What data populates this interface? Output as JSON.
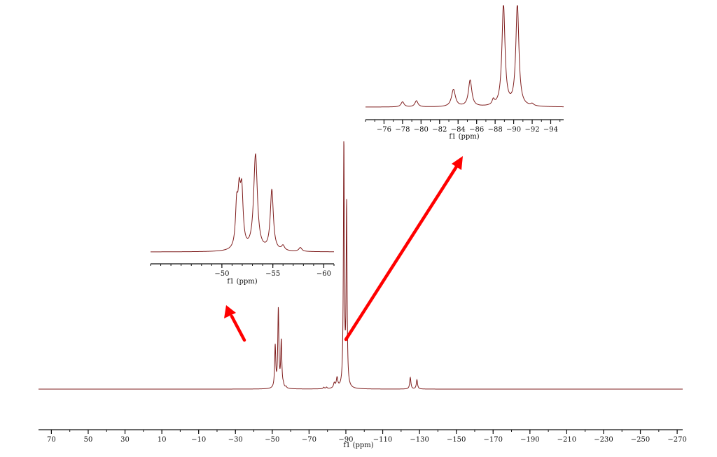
{
  "colors": {
    "spectrum": "#7f1d1d",
    "axis": "#111111",
    "arrow": "#ff0000"
  },
  "chart_data": [
    {
      "type": "line",
      "name_role": "main-spectrum",
      "xlabel": "f1 (ppm)",
      "xlim": [
        77,
        -273
      ],
      "reversed_x": true,
      "tick_values": [
        70,
        50,
        30,
        10,
        -10,
        -30,
        -50,
        -70,
        -90,
        -110,
        -130,
        -150,
        -170,
        -190,
        -210,
        -230,
        -250,
        -270
      ],
      "tick_labels": [
        "70",
        "50",
        "30",
        "10",
        "−10",
        "−30",
        "−50",
        "−70",
        "−90",
        "−110",
        "−130",
        "−150",
        "−170",
        "−190",
        "−210",
        "−230",
        "−250",
        "−270"
      ],
      "peaks": [
        {
          "x": -51.6,
          "height": 0.17,
          "width": 0.35
        },
        {
          "x": -53.3,
          "height": 0.32,
          "width": 0.35
        },
        {
          "x": -54.9,
          "height": 0.19,
          "width": 0.35
        },
        {
          "x": -56.0,
          "height": 0.01,
          "width": 0.4
        },
        {
          "x": -57.5,
          "height": 0.006,
          "width": 0.4
        },
        {
          "x": -78.0,
          "height": 0.006,
          "width": 0.4
        },
        {
          "x": -79.5,
          "height": 0.006,
          "width": 0.4
        },
        {
          "x": -83.7,
          "height": 0.02,
          "width": 0.5
        },
        {
          "x": -85.2,
          "height": 0.04,
          "width": 0.5
        },
        {
          "x": -88.9,
          "height": 1.0,
          "width": 0.3
        },
        {
          "x": -90.4,
          "height": 0.74,
          "width": 0.3
        },
        {
          "x": -125.0,
          "height": 0.047,
          "width": 0.4
        },
        {
          "x": -128.6,
          "height": 0.038,
          "width": 0.4
        }
      ]
    },
    {
      "type": "line",
      "name_role": "inset-fluorine-low",
      "xlabel": "f1 (ppm)",
      "xlim": [
        -43,
        -61
      ],
      "reversed_x": true,
      "tick_values": [
        -50,
        -55,
        -60
      ],
      "tick_labels": [
        "−50",
        "−55",
        "−60"
      ],
      "peaks": [
        {
          "x": -51.7,
          "height": 0.5,
          "width": 0.16
        },
        {
          "x": -51.95,
          "height": 0.55,
          "width": 0.16
        },
        {
          "x": -51.45,
          "height": 0.4,
          "width": 0.14
        },
        {
          "x": -53.3,
          "height": 1.0,
          "width": 0.22
        },
        {
          "x": -54.9,
          "height": 0.63,
          "width": 0.18
        },
        {
          "x": -56.0,
          "height": 0.05,
          "width": 0.18
        },
        {
          "x": -57.7,
          "height": 0.04,
          "width": 0.18
        }
      ]
    },
    {
      "type": "line",
      "name_role": "inset-fluorine-high",
      "xlabel": "f1 (ppm)",
      "xlim": [
        -74,
        -95.4
      ],
      "reversed_x": true,
      "tick_values": [
        -76,
        -78,
        -80,
        -82,
        -84,
        -86,
        -88,
        -90,
        -92,
        -94
      ],
      "tick_labels": [
        "−76",
        "−78",
        "−80",
        "−82",
        "−84",
        "−86",
        "−88",
        "−90",
        "−92",
        "−94"
      ],
      "peaks": [
        {
          "x": -78.0,
          "height": 0.05,
          "width": 0.2
        },
        {
          "x": -79.5,
          "height": 0.06,
          "width": 0.2
        },
        {
          "x": -83.5,
          "height": 0.17,
          "width": 0.25
        },
        {
          "x": -85.3,
          "height": 0.26,
          "width": 0.22
        },
        {
          "x": -87.8,
          "height": 0.05,
          "width": 0.15
        },
        {
          "x": -88.9,
          "height": 1.0,
          "width": 0.2
        },
        {
          "x": -90.4,
          "height": 1.0,
          "width": 0.2
        },
        {
          "x": -92.0,
          "height": 0.02,
          "width": 0.2
        }
      ]
    }
  ]
}
